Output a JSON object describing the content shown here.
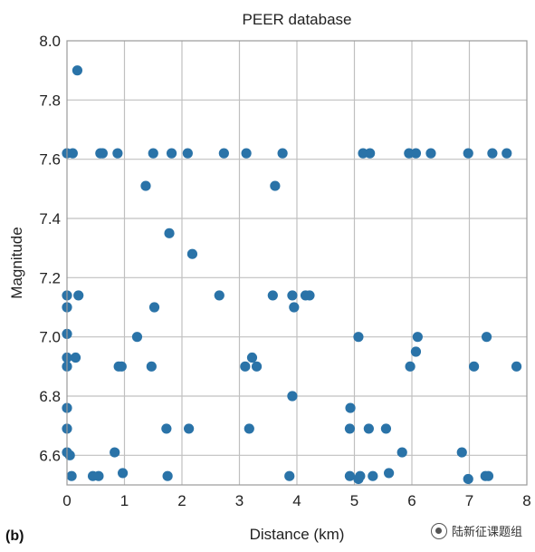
{
  "chart_data": {
    "type": "scatter",
    "title": "PEER database",
    "panel_label": "(b)",
    "xlabel": "Distance (km)",
    "ylabel": "Magnitude",
    "xlim": [
      0,
      8
    ],
    "ylim": [
      6.5,
      8.0
    ],
    "x_ticks": [
      0,
      1,
      2,
      3,
      4,
      5,
      6,
      7,
      8
    ],
    "y_ticks": [
      6.6,
      6.8,
      7.0,
      7.2,
      7.4,
      7.6,
      7.8,
      8.0
    ],
    "x_tick_labels": [
      "0",
      "1",
      "2",
      "3",
      "4",
      "5",
      "6",
      "7",
      "8"
    ],
    "y_tick_labels": [
      "6.6",
      "6.8",
      "7.0",
      "7.2",
      "7.4",
      "7.6",
      "7.8",
      "8.0"
    ],
    "grid": true,
    "point_color": "#2a73a8",
    "series": [
      {
        "points": [
          [
            0.18,
            7.9
          ],
          [
            0.0,
            7.62
          ],
          [
            0.1,
            7.62
          ],
          [
            0.58,
            7.62
          ],
          [
            0.62,
            7.62
          ],
          [
            0.88,
            7.62
          ],
          [
            1.5,
            7.62
          ],
          [
            1.82,
            7.62
          ],
          [
            2.1,
            7.62
          ],
          [
            2.73,
            7.62
          ],
          [
            3.12,
            7.62
          ],
          [
            3.75,
            7.62
          ],
          [
            5.15,
            7.62
          ],
          [
            5.27,
            7.62
          ],
          [
            5.95,
            7.62
          ],
          [
            6.07,
            7.62
          ],
          [
            6.33,
            7.62
          ],
          [
            6.98,
            7.62
          ],
          [
            7.4,
            7.62
          ],
          [
            7.65,
            7.62
          ],
          [
            1.37,
            7.51
          ],
          [
            3.62,
            7.51
          ],
          [
            1.78,
            7.35
          ],
          [
            2.18,
            7.28
          ],
          [
            0.0,
            7.14
          ],
          [
            0.2,
            7.14
          ],
          [
            2.65,
            7.14
          ],
          [
            3.58,
            7.14
          ],
          [
            3.92,
            7.14
          ],
          [
            4.15,
            7.14
          ],
          [
            4.22,
            7.14
          ],
          [
            0.0,
            7.1
          ],
          [
            1.52,
            7.1
          ],
          [
            3.95,
            7.1
          ],
          [
            0.0,
            7.01
          ],
          [
            1.22,
            7.0
          ],
          [
            5.07,
            7.0
          ],
          [
            6.1,
            7.0
          ],
          [
            7.3,
            7.0
          ],
          [
            6.07,
            6.95
          ],
          [
            0.0,
            6.93
          ],
          [
            0.15,
            6.93
          ],
          [
            3.22,
            6.93
          ],
          [
            0.0,
            6.9
          ],
          [
            0.9,
            6.9
          ],
          [
            0.95,
            6.9
          ],
          [
            1.47,
            6.9
          ],
          [
            3.1,
            6.9
          ],
          [
            3.3,
            6.9
          ],
          [
            5.97,
            6.9
          ],
          [
            7.08,
            6.9
          ],
          [
            7.82,
            6.9
          ],
          [
            3.92,
            6.8
          ],
          [
            0.0,
            6.76
          ],
          [
            4.93,
            6.76
          ],
          [
            0.0,
            6.69
          ],
          [
            1.73,
            6.69
          ],
          [
            2.12,
            6.69
          ],
          [
            3.17,
            6.69
          ],
          [
            4.92,
            6.69
          ],
          [
            5.25,
            6.69
          ],
          [
            5.55,
            6.69
          ],
          [
            0.0,
            6.61
          ],
          [
            0.83,
            6.61
          ],
          [
            5.83,
            6.61
          ],
          [
            6.87,
            6.61
          ],
          [
            0.05,
            6.6
          ],
          [
            0.08,
            6.53
          ],
          [
            0.45,
            6.53
          ],
          [
            0.55,
            6.53
          ],
          [
            0.97,
            6.54
          ],
          [
            1.75,
            6.53
          ],
          [
            3.87,
            6.53
          ],
          [
            4.92,
            6.53
          ],
          [
            5.07,
            6.52
          ],
          [
            5.1,
            6.53
          ],
          [
            5.32,
            6.53
          ],
          [
            5.6,
            6.54
          ],
          [
            6.98,
            6.52
          ],
          [
            7.28,
            6.53
          ],
          [
            7.33,
            6.53
          ]
        ]
      }
    ]
  },
  "watermark": {
    "text": "陆新征课题组"
  }
}
